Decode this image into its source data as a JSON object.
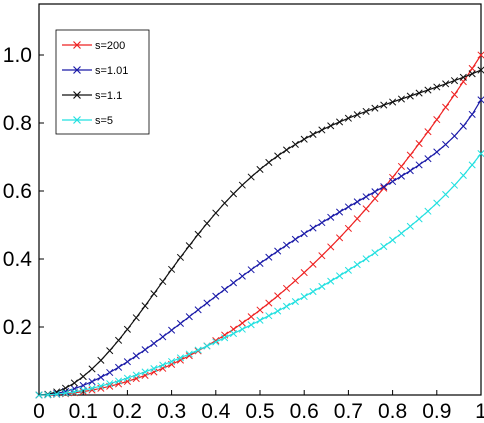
{
  "chart_data": {
    "type": "line",
    "title": "",
    "xlabel": "",
    "ylabel": "",
    "xlim": [
      0,
      1
    ],
    "ylim": [
      0,
      1.15
    ],
    "x_ticks": [
      "0",
      "0.1",
      "0.2",
      "0.3",
      "0.4",
      "0.5",
      "0.6",
      "0.7",
      "0.8",
      "0.9",
      "1"
    ],
    "y_ticks": [
      "0.2",
      "0.4",
      "0.6",
      "0.8",
      "1.0"
    ],
    "grid": false,
    "legend_position": "top-left",
    "x": [
      0,
      0.02,
      0.04,
      0.06,
      0.08,
      0.1,
      0.12,
      0.14,
      0.16,
      0.18,
      0.2,
      0.22,
      0.24,
      0.26,
      0.28,
      0.3,
      0.32,
      0.34,
      0.36,
      0.38,
      0.4,
      0.42,
      0.44,
      0.46,
      0.48,
      0.5,
      0.52,
      0.54,
      0.56,
      0.58,
      0.6,
      0.62,
      0.64,
      0.66,
      0.68,
      0.7,
      0.72,
      0.74,
      0.76,
      0.78,
      0.8,
      0.82,
      0.84,
      0.86,
      0.88,
      0.9,
      0.92,
      0.94,
      0.96,
      0.98,
      1
    ],
    "series": [
      {
        "name": "s=200",
        "color": "#ee2222",
        "marker": "x",
        "values": [
          0,
          0.0004,
          0.0016,
          0.0036,
          0.0064,
          0.01,
          0.0144,
          0.0196,
          0.0256,
          0.0324,
          0.04,
          0.0484,
          0.0576,
          0.0676,
          0.0784,
          0.09,
          0.1024,
          0.1156,
          0.1296,
          0.1444,
          0.16,
          0.1764,
          0.1936,
          0.2116,
          0.2304,
          0.25,
          0.2704,
          0.2916,
          0.3136,
          0.3364,
          0.36,
          0.3844,
          0.4096,
          0.4356,
          0.4624,
          0.49,
          0.5184,
          0.5476,
          0.5776,
          0.6084,
          0.64,
          0.6724,
          0.7056,
          0.7396,
          0.7744,
          0.81,
          0.8464,
          0.8836,
          0.9216,
          0.9604,
          1.0
        ]
      },
      {
        "name": "s=1.01",
        "color": "#1a1aa8",
        "marker": "x",
        "values": [
          0,
          0.0012,
          0.0048,
          0.0106,
          0.0184,
          0.028,
          0.0393,
          0.0521,
          0.0662,
          0.0815,
          0.0979,
          0.1152,
          0.1332,
          0.1518,
          0.171,
          0.1906,
          0.2104,
          0.2304,
          0.2505,
          0.2705,
          0.2906,
          0.3104,
          0.33,
          0.3494,
          0.3684,
          0.3871,
          0.4054,
          0.4233,
          0.4408,
          0.4579,
          0.4746,
          0.4911,
          0.507,
          0.5227,
          0.5381,
          0.5533,
          0.5682,
          0.5831,
          0.5979,
          0.6128,
          0.628,
          0.6436,
          0.6598,
          0.6768,
          0.695,
          0.7148,
          0.7368,
          0.7617,
          0.7907,
          0.8253,
          0.8681
        ]
      },
      {
        "name": "s=1.1",
        "color": "#111111",
        "marker": "x",
        "values": [
          0,
          0.0023,
          0.0091,
          0.0202,
          0.0354,
          0.0543,
          0.0767,
          0.1021,
          0.1303,
          0.1608,
          0.1933,
          0.2272,
          0.2622,
          0.2979,
          0.3338,
          0.3695,
          0.4048,
          0.4392,
          0.4726,
          0.5047,
          0.5353,
          0.5643,
          0.5917,
          0.6173,
          0.6412,
          0.6634,
          0.684,
          0.7031,
          0.7208,
          0.7371,
          0.7523,
          0.7664,
          0.7795,
          0.7917,
          0.8032,
          0.814,
          0.8243,
          0.8341,
          0.8435,
          0.8527,
          0.8617,
          0.8705,
          0.8793,
          0.8881,
          0.8969,
          0.9059,
          0.9151,
          0.9246,
          0.9345,
          0.9448,
          0.9556
        ]
      },
      {
        "name": "s=5",
        "color": "#22e0e0",
        "marker": "x",
        "values": [
          0,
          0.0006,
          0.0024,
          0.0053,
          0.0092,
          0.0141,
          0.0198,
          0.0262,
          0.0334,
          0.0412,
          0.0496,
          0.0585,
          0.0679,
          0.0777,
          0.0879,
          0.0985,
          0.1094,
          0.1206,
          0.1321,
          0.1439,
          0.1559,
          0.1682,
          0.1807,
          0.1934,
          0.2064,
          0.2196,
          0.2331,
          0.2468,
          0.2607,
          0.2749,
          0.2894,
          0.3042,
          0.3193,
          0.3348,
          0.3506,
          0.3668,
          0.3835,
          0.4007,
          0.4184,
          0.4367,
          0.4557,
          0.4755,
          0.4962,
          0.5178,
          0.5405,
          0.5645,
          0.5899,
          0.6169,
          0.6457,
          0.6767,
          0.7101
        ]
      }
    ]
  }
}
